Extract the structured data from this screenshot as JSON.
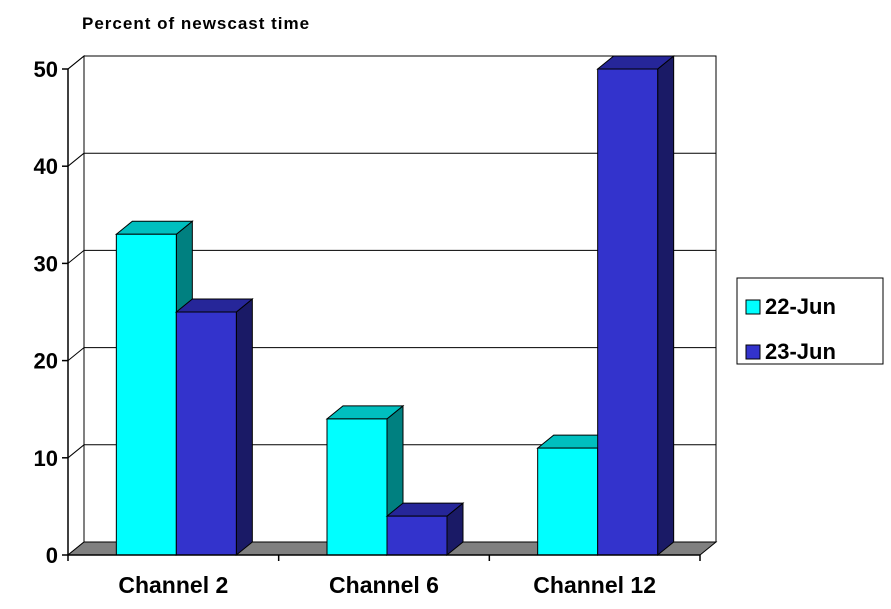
{
  "chart_data": {
    "type": "bar",
    "style": "3d-clustered-column",
    "title": "",
    "ylabel": "Percent of newscast time",
    "xlabel": "",
    "categories": [
      "Channel 2",
      "Channel 6",
      "Channel 12"
    ],
    "series": [
      {
        "name": "22-Jun",
        "values": [
          33,
          14,
          11
        ],
        "color": "#00ffff"
      },
      {
        "name": "23-Jun",
        "values": [
          25,
          4,
          50
        ],
        "color": "#3333cc"
      }
    ],
    "ylim": [
      0,
      50
    ],
    "yticks": [
      "0",
      "10",
      "20",
      "30",
      "40",
      "50"
    ],
    "grid": true,
    "legend_position": "right"
  }
}
